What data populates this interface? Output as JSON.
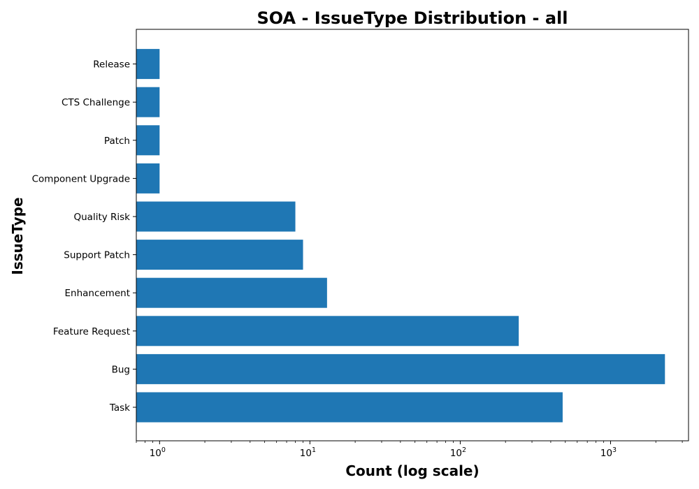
{
  "chart_data": {
    "type": "bar",
    "orientation": "horizontal",
    "title": "SOA - IssueType Distribution - all",
    "xlabel": "Count (log scale)",
    "ylabel": "IssueType",
    "x_scale": "log",
    "xlim": [
      0.7,
      3300
    ],
    "x_ticks": [
      {
        "value": 1,
        "base": "10",
        "exp": "0"
      },
      {
        "value": 10,
        "base": "10",
        "exp": "1"
      },
      {
        "value": 100,
        "base": "10",
        "exp": "2"
      },
      {
        "value": 1000,
        "base": "10",
        "exp": "3"
      }
    ],
    "categories": [
      "Task",
      "Bug",
      "Feature Request",
      "Enhancement",
      "Support Patch",
      "Quality Risk",
      "Component Upgrade",
      "Patch",
      "CTS Challenge",
      "Release"
    ],
    "values": [
      480,
      2300,
      245,
      13,
      9,
      8,
      1,
      1,
      1,
      1
    ],
    "bar_color": "#1f77b4",
    "grid": false
  }
}
